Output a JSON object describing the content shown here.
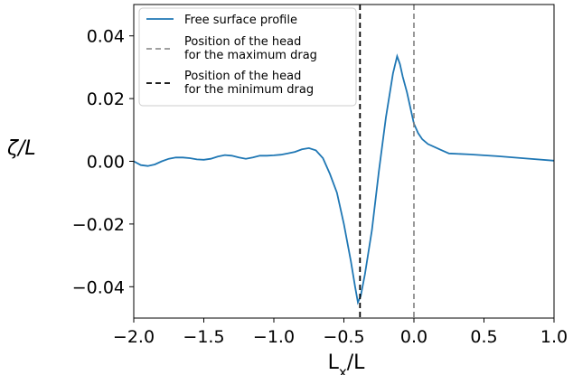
{
  "chart_data": {
    "type": "line",
    "xlabel_main": "L",
    "xlabel_sub": "x",
    "xlabel_tail": "/L",
    "ylabel": "ζ/L",
    "xlim": [
      -2.0,
      1.0
    ],
    "ylim": [
      -0.05,
      0.05
    ],
    "x_ticks": [
      -2.0,
      -1.5,
      -1.0,
      -0.5,
      0.0,
      0.5,
      1.0
    ],
    "x_tick_labels": [
      "−2.0",
      "−1.5",
      "−1.0",
      "−0.5",
      "0.0",
      "0.5",
      "1.0"
    ],
    "y_ticks": [
      -0.04,
      -0.02,
      0.0,
      0.02,
      0.04
    ],
    "y_tick_labels": [
      "−0.04",
      "−0.02",
      "0.00",
      "0.02",
      "0.04"
    ],
    "grid": false,
    "legend_position": "upper-left",
    "colors": {
      "profile": "#1f77b4",
      "max_drag_line": "#808080",
      "min_drag_line": "#000000"
    },
    "series": [
      {
        "name": "Free surface profile",
        "x": [
          -2.0,
          -1.95,
          -1.9,
          -1.85,
          -1.8,
          -1.75,
          -1.7,
          -1.65,
          -1.6,
          -1.55,
          -1.5,
          -1.45,
          -1.4,
          -1.35,
          -1.3,
          -1.25,
          -1.2,
          -1.15,
          -1.1,
          -1.05,
          -1.0,
          -0.95,
          -0.9,
          -0.85,
          -0.8,
          -0.75,
          -0.7,
          -0.65,
          -0.6,
          -0.55,
          -0.5,
          -0.45,
          -0.42,
          -0.4,
          -0.38,
          -0.35,
          -0.3,
          -0.25,
          -0.2,
          -0.15,
          -0.12,
          -0.1,
          -0.08,
          -0.05,
          -0.02,
          0.0,
          0.03,
          0.06,
          0.1,
          0.15,
          0.2,
          0.25,
          0.4,
          0.6,
          0.8,
          1.0
        ],
        "y": [
          0.0,
          -0.0012,
          -0.0015,
          -0.001,
          0.0,
          0.0008,
          0.0012,
          0.0012,
          0.001,
          0.0006,
          0.0005,
          0.0008,
          0.0015,
          0.002,
          0.0018,
          0.0012,
          0.0008,
          0.0012,
          0.0018,
          0.0018,
          0.0019,
          0.0021,
          0.0025,
          0.003,
          0.0038,
          0.0042,
          0.0035,
          0.001,
          -0.004,
          -0.01,
          -0.02,
          -0.032,
          -0.04,
          -0.045,
          -0.043,
          -0.036,
          -0.022,
          -0.003,
          0.014,
          0.028,
          0.0335,
          0.031,
          0.027,
          0.022,
          0.016,
          0.012,
          0.009,
          0.007,
          0.0055,
          0.0045,
          0.0035,
          0.0025,
          0.0022,
          0.0016,
          0.0009,
          0.0002
        ]
      }
    ],
    "vertical_lines": [
      {
        "name": "Position of the head for the maximum drag",
        "x": 0.0,
        "style": "dashed",
        "color": "#808080"
      },
      {
        "name": "Position of the head for the minimum drag",
        "x": -0.385,
        "style": "dashed",
        "color": "#000000"
      }
    ],
    "legend": [
      {
        "line1": "Free surface profile",
        "line2": "",
        "style": "solid",
        "color": "#1f77b4"
      },
      {
        "line1": "Position of the head",
        "line2": "for the maximum drag",
        "style": "dashed",
        "color": "#808080"
      },
      {
        "line1": "Position of the head",
        "line2": "for the minimum drag",
        "style": "dashed",
        "color": "#000000"
      }
    ]
  }
}
